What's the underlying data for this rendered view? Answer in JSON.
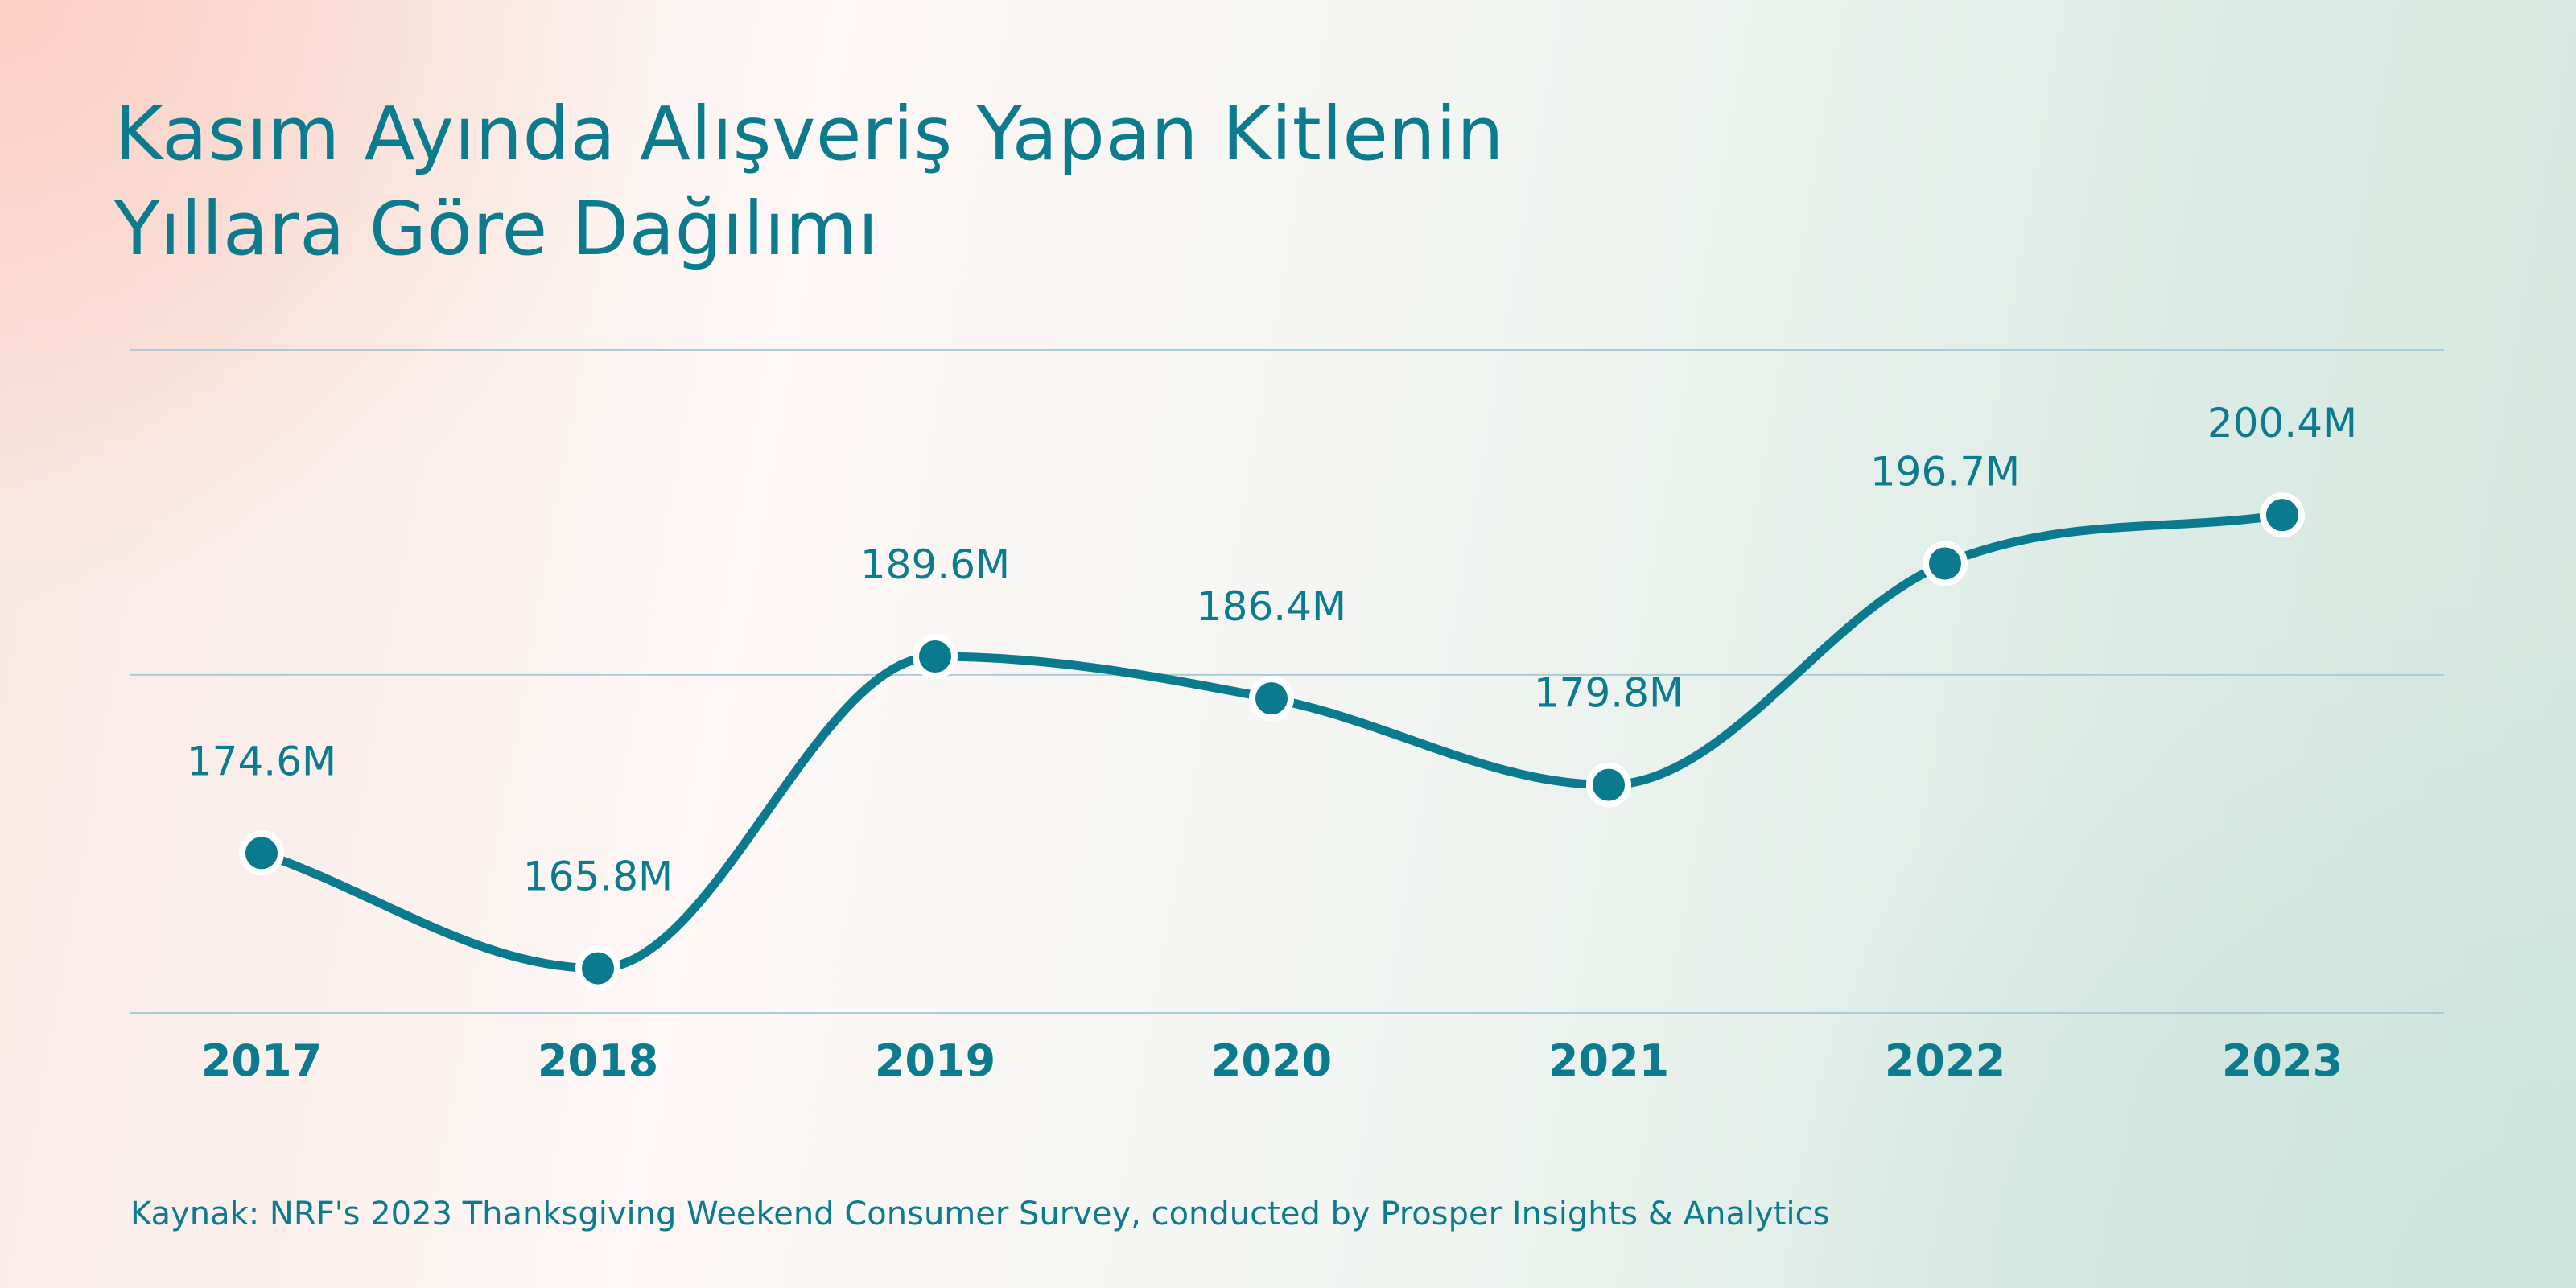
{
  "title": {
    "line1": "Kasım Ayında Alışveriş Yapan Kitlenin",
    "line2": "Yıllara Göre Dağılımı"
  },
  "source": "Kaynak: NRF's 2023 Thanksgiving Weekend Consumer Survey, conducted by Prosper Insights & Analytics",
  "colors": {
    "line": "#0a7a8f",
    "text": "#0d7b8e",
    "grid": "#a9cdd6",
    "marker_stroke": "#ffffff"
  },
  "chart_data": {
    "type": "line",
    "categories": [
      "2017",
      "2018",
      "2019",
      "2020",
      "2021",
      "2022",
      "2023"
    ],
    "series": [
      {
        "values": [
          174.6,
          165.8,
          189.6,
          186.4,
          179.8,
          196.7,
          200.4
        ],
        "labels": [
          "174.6M",
          "165.8M",
          "189.6M",
          "186.4M",
          "179.8M",
          "196.7M",
          "200.4M"
        ]
      }
    ],
    "ylim": [
      162.4,
      213.0
    ],
    "gridlines": [
      162.4,
      188.2,
      213.0
    ],
    "smooth": true,
    "legend": "none"
  }
}
